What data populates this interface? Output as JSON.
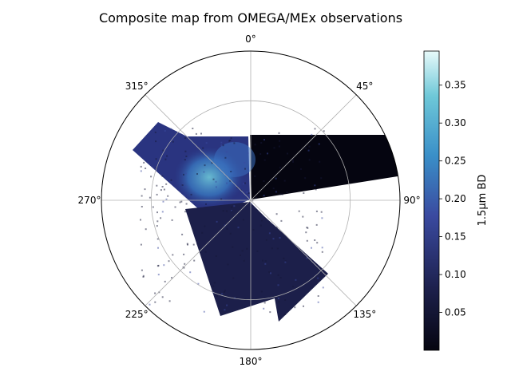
{
  "figure": {
    "title": "Composite map from OMEGA/MEx observations"
  },
  "chart_data": {
    "type": "heatmap",
    "projection": "polar",
    "title": "Composite map from OMEGA/MEx observations",
    "theta_direction": "clockwise",
    "theta_zero": "top",
    "angular_ticks": [
      "0°",
      "45°",
      "90°",
      "135°",
      "180°",
      "225°",
      "270°",
      "315°"
    ],
    "radial_grid": true,
    "swaths": [
      {
        "name": "",
        "theta_range_deg": [
          0,
          92
        ],
        "mean_value": 0.03
      },
      {
        "name": "",
        "theta_range_deg": [
          300,
          332
        ],
        "mean_value": 0.22
      },
      {
        "name": "",
        "theta_range_deg": [
          138,
          205
        ],
        "mean_value": 0.08
      }
    ],
    "colorbar": {
      "label": "1.5µm BD",
      "range": [
        0.0,
        0.395
      ],
      "ticks": [
        "0.05",
        "0.10",
        "0.15",
        "0.20",
        "0.25",
        "0.30",
        "0.35"
      ],
      "tick_values": [
        0.05,
        0.1,
        0.15,
        0.2,
        0.25,
        0.3,
        0.35
      ],
      "colormap": "icefire-blue",
      "colors": [
        "#050510",
        "#1c1f4a",
        "#3a4aa0",
        "#3a8fc8",
        "#6ec8d8",
        "#e8fafa"
      ]
    }
  }
}
